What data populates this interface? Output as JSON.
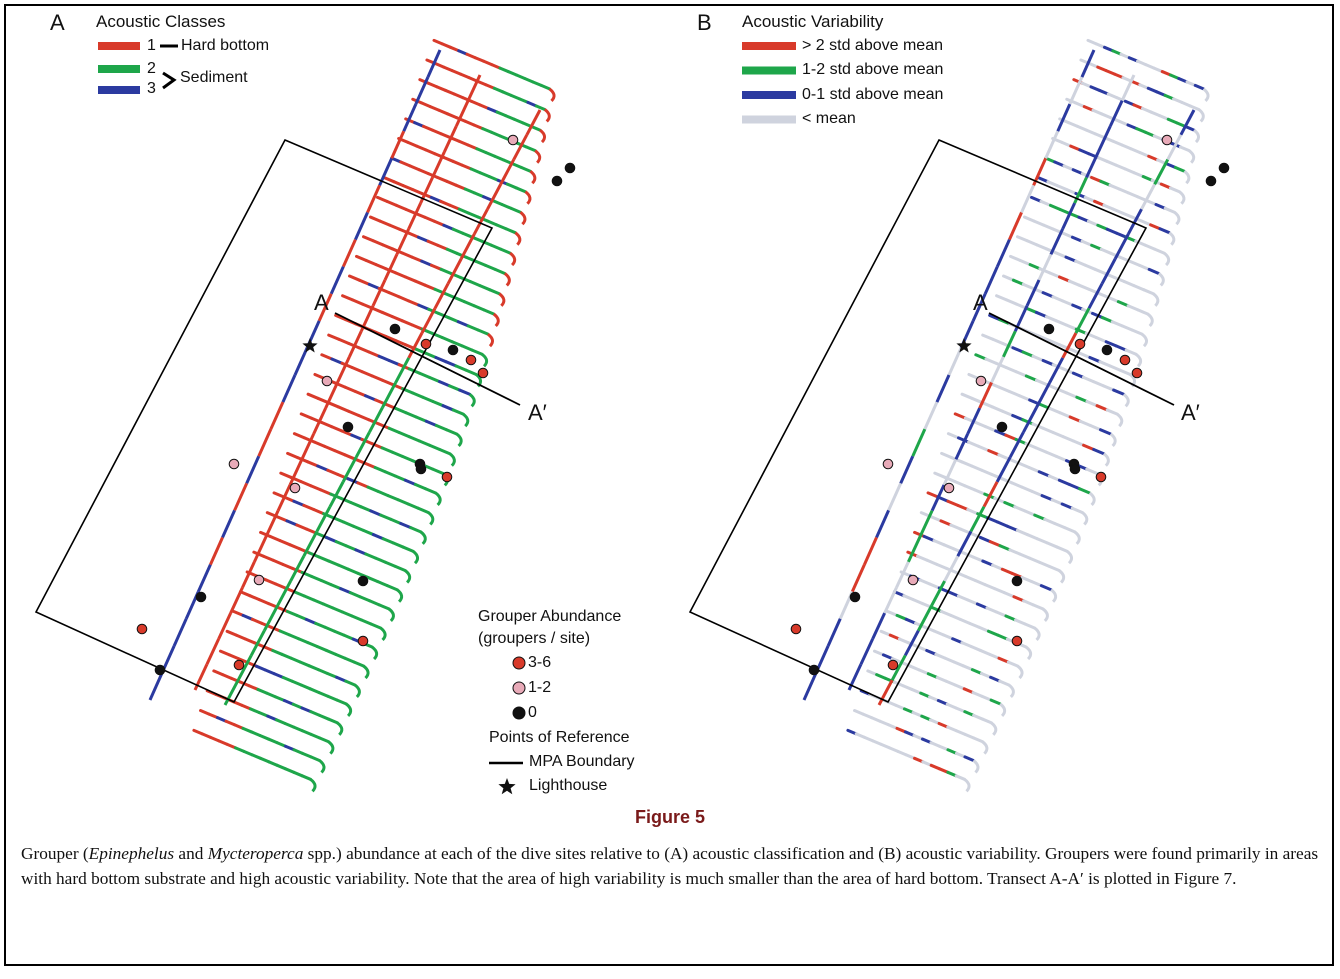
{
  "panels": {
    "a": {
      "letter": "A",
      "legend_title": "Acoustic Classes",
      "classes": [
        {
          "num": "1",
          "color": "#d83a2a"
        },
        {
          "num": "2",
          "color": "#1ea64a"
        },
        {
          "num": "3",
          "color": "#2b3aa0"
        }
      ],
      "hard_bottom_label": "Hard bottom",
      "sediment_label": "Sediment",
      "transect_start": "A",
      "transect_end": "A′"
    },
    "b": {
      "letter": "B",
      "legend_title": "Acoustic Variability",
      "items": [
        {
          "label": "> 2 std above mean",
          "color": "#d83a2a"
        },
        {
          "label": "1-2 std above mean",
          "color": "#1ea64a"
        },
        {
          "label": "0-1 std above mean",
          "color": "#2b3aa0"
        },
        {
          "label": "< mean",
          "color": "#cfd3de"
        }
      ],
      "transect_start": "A",
      "transect_end": "A′"
    }
  },
  "abundance_legend": {
    "title_line1": "Grouper Abundance",
    "title_line2": "(groupers / site)",
    "items": [
      {
        "label": "3-6",
        "color": "#d83a2a"
      },
      {
        "label": "1-2",
        "color": "#e8aab8"
      },
      {
        "label": "0",
        "color": "#111111"
      }
    ],
    "reference_title": "Points of Reference",
    "mpa_label": "MPA Boundary",
    "lighthouse_label": "Lighthouse"
  },
  "figure_title": "Figure 5",
  "caption": {
    "part1": "Grouper (",
    "genus1": "Epinephelus",
    "part2": " and ",
    "genus2": "Mycteroperca",
    "part3": " spp.) abundance at each of the dive sites relative to (A) acoustic classification and (B) acoustic variability. Groupers were found primarily in areas with hard bottom substrate and high acoustic variability. Note that the area of high variability is much smaller than the area of hard bottom. Transect A-A′ is plotted in Figure 7."
  }
}
